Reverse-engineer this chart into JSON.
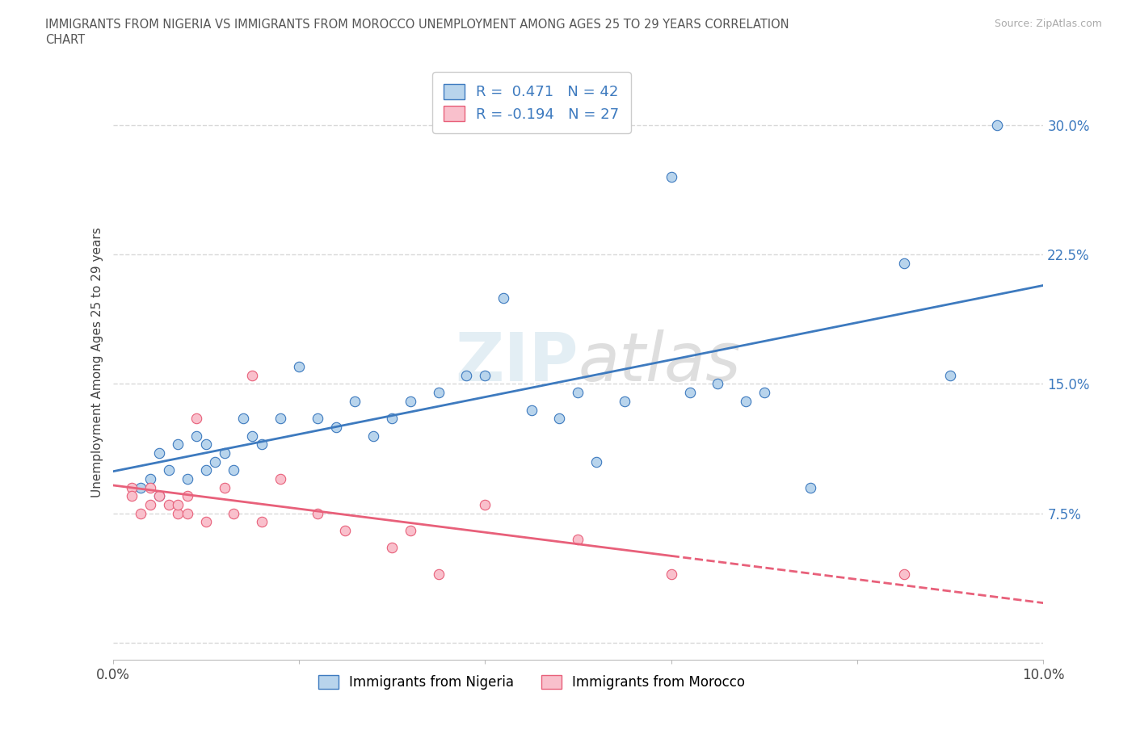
{
  "title": "IMMIGRANTS FROM NIGERIA VS IMMIGRANTS FROM MOROCCO UNEMPLOYMENT AMONG AGES 25 TO 29 YEARS CORRELATION\nCHART",
  "source": "Source: ZipAtlas.com",
  "ylabel": "Unemployment Among Ages 25 to 29 years",
  "nigeria_r": 0.471,
  "nigeria_n": 42,
  "morocco_r": -0.194,
  "morocco_n": 27,
  "nigeria_color": "#b8d4ec",
  "morocco_color": "#f9c0cc",
  "nigeria_line_color": "#3d7abf",
  "morocco_line_color": "#e8607a",
  "xlim": [
    0.0,
    0.1
  ],
  "ylim": [
    -0.01,
    0.335
  ],
  "yticks": [
    0.0,
    0.075,
    0.15,
    0.225,
    0.3
  ],
  "ytick_labels": [
    "",
    "7.5%",
    "15.0%",
    "22.5%",
    "30.0%"
  ],
  "xticks": [
    0.0,
    0.02,
    0.04,
    0.06,
    0.08,
    0.1
  ],
  "xtick_labels": [
    "0.0%",
    "",
    "",
    "",
    "",
    "10.0%"
  ],
  "watermark": "ZIPatlas",
  "nigeria_x": [
    0.003,
    0.004,
    0.005,
    0.005,
    0.006,
    0.007,
    0.008,
    0.009,
    0.01,
    0.01,
    0.011,
    0.012,
    0.013,
    0.014,
    0.015,
    0.016,
    0.018,
    0.02,
    0.022,
    0.024,
    0.026,
    0.028,
    0.03,
    0.032,
    0.035,
    0.038,
    0.04,
    0.042,
    0.045,
    0.048,
    0.05,
    0.052,
    0.055,
    0.06,
    0.062,
    0.065,
    0.068,
    0.07,
    0.075,
    0.085,
    0.09,
    0.095
  ],
  "nigeria_y": [
    0.09,
    0.095,
    0.085,
    0.11,
    0.1,
    0.115,
    0.095,
    0.12,
    0.1,
    0.115,
    0.105,
    0.11,
    0.1,
    0.13,
    0.12,
    0.115,
    0.13,
    0.16,
    0.13,
    0.125,
    0.14,
    0.12,
    0.13,
    0.14,
    0.145,
    0.155,
    0.155,
    0.2,
    0.135,
    0.13,
    0.145,
    0.105,
    0.14,
    0.27,
    0.145,
    0.15,
    0.14,
    0.145,
    0.09,
    0.22,
    0.155,
    0.3
  ],
  "morocco_x": [
    0.002,
    0.002,
    0.003,
    0.004,
    0.004,
    0.005,
    0.006,
    0.007,
    0.007,
    0.008,
    0.008,
    0.009,
    0.01,
    0.012,
    0.013,
    0.015,
    0.016,
    0.018,
    0.022,
    0.025,
    0.03,
    0.032,
    0.035,
    0.04,
    0.05,
    0.06,
    0.085
  ],
  "morocco_y": [
    0.09,
    0.085,
    0.075,
    0.08,
    0.09,
    0.085,
    0.08,
    0.075,
    0.08,
    0.085,
    0.075,
    0.13,
    0.07,
    0.09,
    0.075,
    0.155,
    0.07,
    0.095,
    0.075,
    0.065,
    0.055,
    0.065,
    0.04,
    0.08,
    0.06,
    0.04,
    0.04
  ],
  "background_color": "#ffffff",
  "grid_color": "#d8d8d8"
}
